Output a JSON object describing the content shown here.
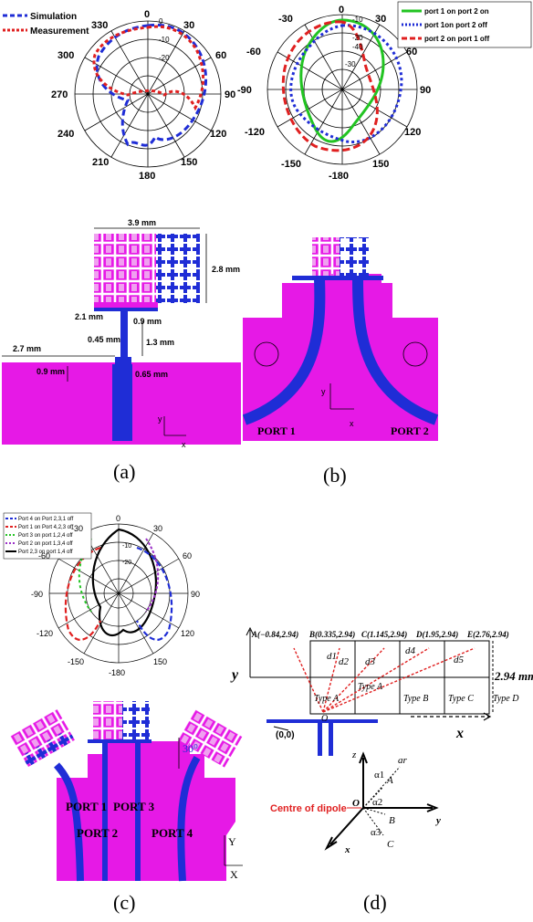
{
  "panel_a": {
    "caption": "(a)",
    "polar": {
      "legend": [
        "Simulation",
        "Measurement"
      ],
      "angle_labels": [
        "0",
        "30",
        "60",
        "90",
        "120",
        "150",
        "180",
        "210",
        "240",
        "270",
        "300",
        "330"
      ],
      "radial_labels": [
        "0",
        "-10",
        "-20"
      ]
    },
    "geometry": {
      "dims": [
        "3.9 mm",
        "2.8 mm",
        "2.1 mm",
        "0.9 mm",
        "0.45 mm",
        "1.3 mm",
        "2.7 mm",
        "0.9 mm",
        "0.65 mm"
      ],
      "axis_y": "y",
      "axis_x": "x"
    }
  },
  "panel_b": {
    "caption": "(b)",
    "polar": {
      "legend": [
        "port 1 on port 2 on",
        "port 1on port 2 off",
        "port 2 on port 1 off"
      ],
      "angle_labels": [
        "0",
        "30",
        "60",
        "90",
        "120",
        "150",
        "-180",
        "-150",
        "-120",
        "-90",
        "-60",
        "-30"
      ],
      "radial_labels": [
        "-10",
        "-20",
        "-30",
        "-40"
      ]
    },
    "geometry": {
      "port1": "PORT 1",
      "port2": "PORT 2",
      "axis_y": "y",
      "axis_x": "x"
    }
  },
  "panel_c": {
    "caption": "(c)",
    "polar": {
      "legend": [
        "Port 4 on  Port 2,3,1 off",
        "Port 1 on Port 4,2,3 off",
        "Port 3 on port 1,2,4 off",
        "Port 2 on port 1,3,4 off",
        "Port 2,3 on port 1,4 off"
      ],
      "angle_labels": [
        "0",
        "30",
        "60",
        "90",
        "120",
        "150",
        "-180",
        "-150",
        "-120",
        "-90",
        "-60",
        "-30"
      ],
      "radial_labels": [
        "-10",
        "-20"
      ]
    },
    "geometry": {
      "ports": [
        "PORT 1",
        "PORT 2",
        "PORT 3",
        "PORT 4"
      ],
      "angle": "30⁰",
      "axis_y": "Y",
      "axis_x": "X"
    }
  },
  "panel_d": {
    "caption": "(d)",
    "points": [
      "A(−0.84,2.94)",
      "B(0.335,2.94)",
      "C(1.145,2.94)",
      "D(1.95,2.94)",
      "E(2.76,2.94)"
    ],
    "distances": [
      "d1",
      "d2",
      "d3",
      "d4",
      "d5"
    ],
    "cells": [
      "Type A",
      "Type A",
      "Type B",
      "Type C",
      "Type D"
    ],
    "height": "2.94 mm",
    "origin": "O",
    "origin_coord": "(0,0)",
    "axis_y": "y",
    "axis_x": "x",
    "dipole_label": "Centre of dipole",
    "lower": {
      "z": "z",
      "ar": "ar",
      "O": "O",
      "x": "x",
      "y": "y",
      "A": "A",
      "B": "B",
      "C": "C",
      "alpha1": "α1",
      "alpha2": "α2",
      "alpha3": "α3"
    }
  },
  "colors": {
    "magenta": "#e619e6",
    "blue": "#1f2dd6",
    "red": "#e02020",
    "green": "#22c422"
  }
}
